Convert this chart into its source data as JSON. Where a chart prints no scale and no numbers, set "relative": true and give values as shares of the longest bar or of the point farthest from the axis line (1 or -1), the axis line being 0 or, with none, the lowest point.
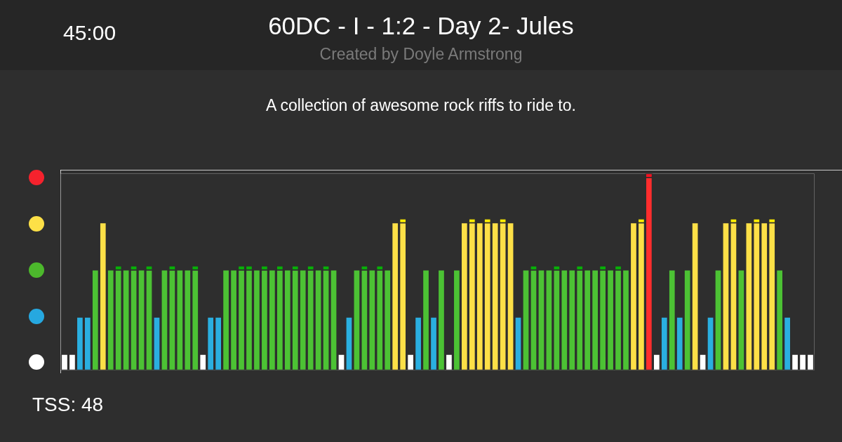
{
  "chart_data": {
    "type": "bar",
    "relative": true,
    "stacked": true,
    "title": "60DC - I - 1:2 - Day 2- Jules",
    "subtitle": "Created by Doyle Armstrong",
    "annotations": [
      "45:00",
      "A collection of awesome rock riffs to ride to.",
      "TSS: 48"
    ],
    "categories": [
      null,
      null,
      null,
      null,
      null,
      null,
      null,
      null,
      null,
      null,
      null,
      null,
      null,
      null,
      null,
      null,
      null,
      null,
      null,
      null,
      null,
      null,
      null,
      null,
      null,
      null,
      null,
      null,
      null,
      null,
      null,
      null,
      null,
      null,
      null,
      null,
      null,
      null,
      null,
      null,
      null,
      null,
      null,
      null,
      null,
      null,
      null,
      null,
      null,
      null,
      null,
      null,
      null,
      null,
      null,
      null,
      null,
      null,
      null,
      null,
      null,
      null,
      null,
      null,
      null,
      null,
      null,
      null,
      null,
      null,
      null,
      null,
      null,
      null,
      null,
      null,
      null,
      null,
      null,
      null,
      null,
      null,
      null,
      null,
      null,
      null,
      null,
      null,
      null,
      null,
      null,
      null,
      null,
      null,
      null,
      null,
      null,
      null
    ],
    "series": [
      {
        "values": [
          0.08,
          0.08,
          0.27,
          0.27,
          0.51,
          0.75,
          0.51,
          0.51,
          0.51,
          0.51,
          0.51,
          0.51,
          0.27,
          0.51,
          0.51,
          0.51,
          0.51,
          0.51,
          0.08,
          0.27,
          0.27,
          0.51,
          0.51,
          0.51,
          0.51,
          0.51,
          0.51,
          0.51,
          0.51,
          0.51,
          0.51,
          0.51,
          0.51,
          0.51,
          0.51,
          0.51,
          0.08,
          0.27,
          0.51,
          0.51,
          0.51,
          0.51,
          0.51,
          0.75,
          0.75,
          0.08,
          0.27,
          0.51,
          0.27,
          0.51,
          0.08,
          0.51,
          0.75,
          0.75,
          0.75,
          0.75,
          0.75,
          0.75,
          0.75,
          0.27,
          0.51,
          0.51,
          0.51,
          0.51,
          0.51,
          0.51,
          0.51,
          0.51,
          0.51,
          0.51,
          0.51,
          0.51,
          0.51,
          0.51,
          0.75,
          0.75,
          0.98,
          0.08,
          0.27,
          0.51,
          0.27,
          0.51,
          0.75,
          0.08,
          0.27,
          0.51,
          0.75,
          0.75,
          0.51,
          0.75,
          0.75,
          0.75,
          0.75,
          0.51,
          0.27,
          0.08,
          0.08,
          0.08
        ],
        "colors": [
          "#ffffff",
          "#ffffff",
          "#2aafe0",
          "#2aafe0",
          "#4cc234",
          "#fde047",
          "#4cc234",
          "#4cc234",
          "#4cc234",
          "#4cc234",
          "#4cc234",
          "#4cc234",
          "#2aafe0",
          "#4cc234",
          "#4cc234",
          "#4cc234",
          "#4cc234",
          "#4cc234",
          "#ffffff",
          "#2aafe0",
          "#2aafe0",
          "#4cc234",
          "#4cc234",
          "#4cc234",
          "#4cc234",
          "#4cc234",
          "#4cc234",
          "#4cc234",
          "#4cc234",
          "#4cc234",
          "#4cc234",
          "#4cc234",
          "#4cc234",
          "#4cc234",
          "#4cc234",
          "#4cc234",
          "#ffffff",
          "#2aafe0",
          "#4cc234",
          "#4cc234",
          "#4cc234",
          "#4cc234",
          "#4cc234",
          "#fde047",
          "#fde047",
          "#ffffff",
          "#2aafe0",
          "#4cc234",
          "#2aafe0",
          "#4cc234",
          "#ffffff",
          "#4cc234",
          "#fde047",
          "#fde047",
          "#fde047",
          "#fde047",
          "#fde047",
          "#fde047",
          "#fde047",
          "#2aafe0",
          "#4cc234",
          "#4cc234",
          "#4cc234",
          "#4cc234",
          "#4cc234",
          "#4cc234",
          "#4cc234",
          "#4cc234",
          "#4cc234",
          "#4cc234",
          "#4cc234",
          "#4cc234",
          "#4cc234",
          "#4cc234",
          "#fde047",
          "#fde047",
          "#ff2d2d",
          "#ffffff",
          "#2aafe0",
          "#4cc234",
          "#2aafe0",
          "#4cc234",
          "#fde047",
          "#ffffff",
          "#2aafe0",
          "#4cc234",
          "#fde047",
          "#fde047",
          "#4cc234",
          "#fde047",
          "#fde047",
          "#fde047",
          "#fde047",
          "#4cc234",
          "#2aafe0",
          "#ffffff",
          "#ffffff",
          "#ffffff"
        ]
      },
      {
        "values": [
          null,
          null,
          null,
          null,
          null,
          null,
          null,
          0.02,
          null,
          0.02,
          null,
          0.02,
          null,
          null,
          0.02,
          null,
          null,
          0.02,
          null,
          null,
          null,
          null,
          null,
          0.02,
          0.02,
          null,
          0.02,
          null,
          0.02,
          null,
          0.02,
          null,
          0.02,
          null,
          0.02,
          null,
          null,
          null,
          null,
          0.02,
          null,
          0.02,
          null,
          null,
          0.02,
          null,
          null,
          null,
          null,
          null,
          null,
          null,
          null,
          0.02,
          null,
          0.02,
          null,
          0.02,
          null,
          null,
          null,
          0.02,
          null,
          null,
          0.02,
          null,
          null,
          0.02,
          null,
          null,
          0.02,
          null,
          0.02,
          null,
          null,
          0.02,
          0.02,
          null,
          null,
          null,
          null,
          null,
          null,
          null,
          null,
          null,
          null,
          0.02,
          null,
          null,
          0.02,
          null,
          0.02,
          null,
          null,
          null,
          null,
          null
        ],
        "colors": [
          null,
          null,
          null,
          null,
          null,
          null,
          null,
          "#08ae08",
          null,
          "#08ae08",
          null,
          "#08ae08",
          null,
          null,
          "#08ae08",
          null,
          null,
          "#08ae08",
          null,
          null,
          null,
          null,
          null,
          "#08ae08",
          "#08ae08",
          null,
          "#08ae08",
          null,
          "#08ae08",
          null,
          "#08ae08",
          null,
          "#08ae08",
          null,
          "#08ae08",
          null,
          null,
          null,
          null,
          "#08ae08",
          null,
          "#08ae08",
          null,
          null,
          "#ffec00",
          null,
          null,
          null,
          null,
          null,
          null,
          null,
          null,
          "#ffec00",
          null,
          "#ffec00",
          null,
          "#ffec00",
          null,
          null,
          null,
          "#08ae08",
          null,
          null,
          "#08ae08",
          null,
          null,
          "#08ae08",
          null,
          null,
          "#08ae08",
          null,
          "#08ae08",
          null,
          null,
          "#ffec00",
          "#ff1020",
          null,
          null,
          null,
          null,
          null,
          null,
          null,
          null,
          null,
          null,
          "#ffec00",
          null,
          null,
          "#ffec00",
          null,
          "#ffec00",
          null,
          null,
          null,
          null,
          null
        ]
      }
    ]
  }
}
